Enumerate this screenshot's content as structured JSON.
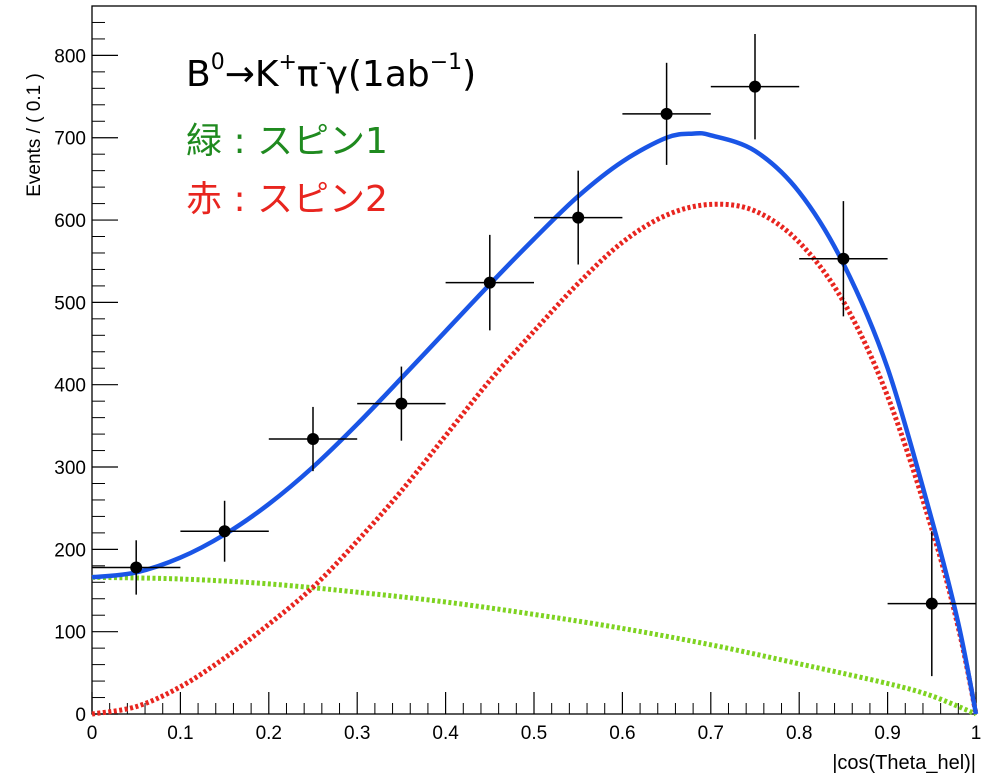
{
  "annotations": {
    "title_parts": [
      "B",
      "0",
      "→K",
      "+",
      "π",
      "-",
      "γ(1ab",
      "−1",
      ")"
    ],
    "green_text": "緑 : スピン1",
    "red_text": "赤 : スピン2",
    "green_color": "#1f8a1f",
    "red_color": "#e8251f"
  },
  "chart_data": {
    "type": "scatter",
    "title": "",
    "xlabel": "|cos(Theta_hel)|",
    "ylabel": "Events / ( 0.1 )",
    "xlim": [
      0,
      1
    ],
    "ylim": [
      0,
      860
    ],
    "x_ticks": [
      "0",
      "0.1",
      "0.2",
      "0.3",
      "0.4",
      "0.5",
      "0.6",
      "0.7",
      "0.8",
      "0.9",
      "1"
    ],
    "x_tick_values": [
      0,
      0.1,
      0.2,
      0.3,
      0.4,
      0.5,
      0.6,
      0.7,
      0.8,
      0.9,
      1
    ],
    "y_ticks": [
      "0",
      "100",
      "200",
      "300",
      "400",
      "500",
      "600",
      "700",
      "800"
    ],
    "y_tick_values": [
      0,
      100,
      200,
      300,
      400,
      500,
      600,
      700,
      800
    ],
    "grid": false,
    "data_points": {
      "x": [
        0.05,
        0.15,
        0.25,
        0.35,
        0.45,
        0.55,
        0.65,
        0.75,
        0.85,
        0.95
      ],
      "x_err": [
        0.05,
        0.05,
        0.05,
        0.05,
        0.05,
        0.05,
        0.05,
        0.05,
        0.05,
        0.05
      ],
      "y": [
        178,
        222,
        334,
        377,
        524,
        603,
        729,
        762,
        553,
        134
      ],
      "y_err_up": [
        33,
        37,
        39,
        45,
        58,
        57,
        62,
        64,
        70,
        88
      ],
      "y_err_down": [
        33,
        37,
        39,
        45,
        58,
        57,
        62,
        64,
        70,
        88
      ],
      "color": "#000000"
    },
    "series": [
      {
        "style": "solid",
        "color": "#1a55e6",
        "x": [
          0.0,
          0.05,
          0.1,
          0.15,
          0.2,
          0.25,
          0.3,
          0.35,
          0.4,
          0.45,
          0.5,
          0.55,
          0.6,
          0.65,
          0.68,
          0.7,
          0.75,
          0.8,
          0.85,
          0.9,
          0.95,
          0.98,
          1.0
        ],
        "y": [
          166,
          172,
          190,
          218,
          255,
          300,
          352,
          408,
          465,
          522,
          577,
          629,
          671,
          700,
          705,
          703,
          684,
          634,
          547,
          420,
          236,
          110,
          0
        ]
      },
      {
        "style": "dotted",
        "color": "#e8251f",
        "x": [
          0.0,
          0.05,
          0.1,
          0.15,
          0.2,
          0.25,
          0.3,
          0.35,
          0.4,
          0.45,
          0.5,
          0.55,
          0.6,
          0.65,
          0.7,
          0.75,
          0.8,
          0.85,
          0.9,
          0.95,
          0.98,
          1.0
        ],
        "y": [
          0,
          9,
          33,
          68,
          109,
          154,
          210,
          271,
          338,
          405,
          465,
          523,
          573,
          606,
          619,
          611,
          573,
          501,
          386,
          225,
          105,
          0
        ]
      },
      {
        "style": "dotted",
        "color": "#7ed321",
        "x": [
          0.0,
          0.1,
          0.2,
          0.3,
          0.4,
          0.5,
          0.6,
          0.7,
          0.8,
          0.9,
          0.95,
          1.0
        ],
        "y": [
          166,
          164,
          158,
          148,
          136,
          121,
          104,
          84,
          61,
          37,
          22,
          0
        ]
      }
    ]
  }
}
